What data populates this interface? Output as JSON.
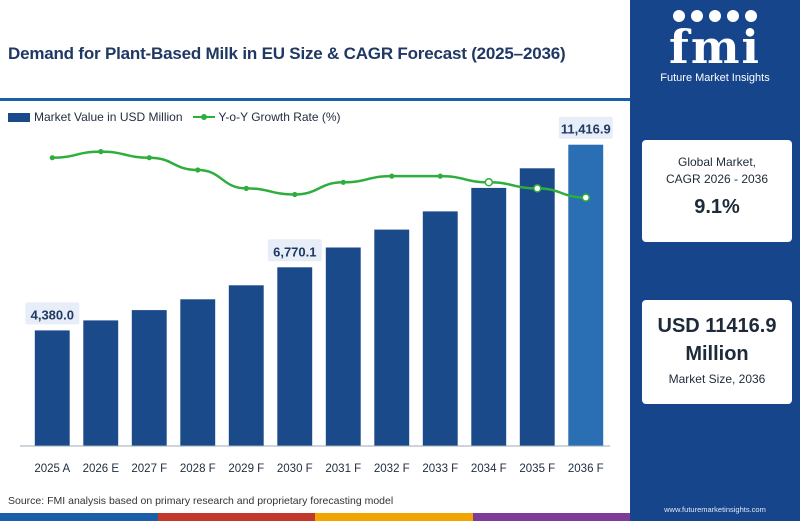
{
  "title": "Demand for Plant-Based Milk in EU Size & CAGR Forecast (2025–2036)",
  "legend": {
    "bar_label": "Market Value in USD Million",
    "line_label": "Y-o-Y Growth Rate (%)"
  },
  "source": "Source: FMI analysis based on primary research and proprietary forecasting model",
  "sidebar": {
    "logo_text": "fmi",
    "logo_subtitle": "Future Market Insights",
    "cagr_label_line1": "Global Market,",
    "cagr_label_line2": "CAGR 2026 - 2036",
    "cagr_value": "9.1%",
    "size_value_line1": "USD 11416.9",
    "size_value_line2": "Million",
    "size_label": "Market Size, 2036",
    "website": "www.futuremarketinsights.com"
  },
  "colors": {
    "bar": "#1b4a8a",
    "bar_last": "#2a6fb3",
    "line": "#2eae3c",
    "title": "#1f3864",
    "sidebar": "#17458c",
    "label_box": "#e8eef7",
    "strip": [
      "#1a5fa8",
      "#c0392b",
      "#f0a500",
      "#7d3c98"
    ]
  },
  "chart_data": {
    "type": "bar",
    "categories": [
      "2025 A",
      "2026 E",
      "2027 F",
      "2028 F",
      "2029 F",
      "2030 F",
      "2031 F",
      "2032 F",
      "2033 F",
      "2034 F",
      "2035 F",
      "2036 F"
    ],
    "series": [
      {
        "name": "Market Value in USD Million",
        "type": "bar",
        "values": [
          4380.0,
          4760,
          5150,
          5560,
          6090,
          6770.1,
          7520,
          8200,
          8890,
          9780,
          10520,
          11416.9
        ]
      },
      {
        "name": "Y-o-Y Growth Rate (%)",
        "type": "line",
        "values": [
          9.4,
          9.6,
          9.4,
          9.0,
          8.4,
          8.2,
          8.6,
          8.8,
          8.8,
          8.6,
          8.4,
          8.1
        ]
      }
    ],
    "data_labels": [
      {
        "index": 0,
        "text": "4,380.0"
      },
      {
        "index": 5,
        "text": "6,770.1"
      },
      {
        "index": 11,
        "text": "11,416.9"
      }
    ],
    "ylim": [
      0,
      12200
    ],
    "line_ylim": [
      0,
      10.5
    ],
    "xlabel": "",
    "ylabel": "",
    "grid": false,
    "legend_position": "top-left"
  }
}
